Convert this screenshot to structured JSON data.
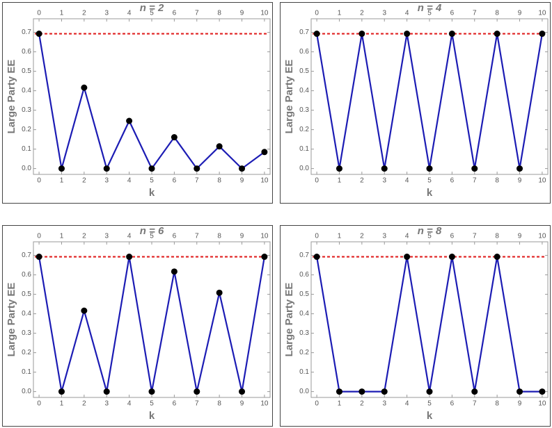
{
  "chart_data": [
    {
      "type": "line",
      "title": "n = 2",
      "xlabel": "k",
      "ylabel": "Large Party EE",
      "x": [
        0,
        1,
        2,
        3,
        4,
        5,
        6,
        7,
        8,
        9,
        10
      ],
      "values": [
        0.693,
        0,
        0.416,
        0,
        0.245,
        0,
        0.161,
        0,
        0.114,
        0,
        0.085
      ],
      "color": "#1c1cb4",
      "marker_color": "#000000",
      "hline": 0.693,
      "hline_color": "#e02020",
      "xlim": [
        -0.25,
        10.25
      ],
      "ylim": [
        -0.03,
        0.77
      ],
      "xticks": [
        0,
        1,
        2,
        3,
        4,
        5,
        6,
        7,
        8,
        9,
        10
      ],
      "yticks": [
        {
          "value": 0,
          "label": "0.0"
        },
        0.1,
        0.2,
        0.3,
        0.4,
        0.5,
        0.6,
        0.7
      ]
    },
    {
      "type": "line",
      "title": "n = 4",
      "xlabel": "k",
      "ylabel": "Large Party EE",
      "x": [
        0,
        1,
        2,
        3,
        4,
        5,
        6,
        7,
        8,
        9,
        10
      ],
      "values": [
        0.693,
        0,
        0.693,
        0,
        0.693,
        0,
        0.693,
        0,
        0.693,
        0,
        0.693
      ],
      "color": "#1c1cb4",
      "marker_color": "#000000",
      "hline": 0.693,
      "hline_color": "#e02020",
      "xlim": [
        -0.25,
        10.25
      ],
      "ylim": [
        -0.03,
        0.77
      ],
      "xticks": [
        0,
        1,
        2,
        3,
        4,
        5,
        6,
        7,
        8,
        9,
        10
      ],
      "yticks": [
        {
          "value": 0,
          "label": "0.0"
        },
        0.1,
        0.2,
        0.3,
        0.4,
        0.5,
        0.6,
        0.7
      ]
    },
    {
      "type": "line",
      "title": "n = 6",
      "xlabel": "k",
      "ylabel": "Large Party EE",
      "x": [
        0,
        1,
        2,
        3,
        4,
        5,
        6,
        7,
        8,
        9,
        10
      ],
      "values": [
        0.693,
        0,
        0.416,
        0,
        0.693,
        0,
        0.617,
        0,
        0.508,
        0,
        0.693
      ],
      "color": "#1c1cb4",
      "marker_color": "#000000",
      "hline": 0.693,
      "hline_color": "#e02020",
      "xlim": [
        -0.25,
        10.25
      ],
      "ylim": [
        -0.03,
        0.77
      ],
      "xticks": [
        0,
        1,
        2,
        3,
        4,
        5,
        6,
        7,
        8,
        9,
        10
      ],
      "yticks": [
        {
          "value": 0,
          "label": "0.0"
        },
        0.1,
        0.2,
        0.3,
        0.4,
        0.5,
        0.6,
        0.7
      ]
    },
    {
      "type": "line",
      "title": "n = 8",
      "xlabel": "k",
      "ylabel": "Large Party EE",
      "x": [
        0,
        1,
        2,
        3,
        4,
        5,
        6,
        7,
        8,
        9,
        10
      ],
      "values": [
        0.693,
        0,
        0,
        0,
        0.693,
        0,
        0.693,
        0,
        0.693,
        0,
        0
      ],
      "color": "#1c1cb4",
      "marker_color": "#000000",
      "hline": 0.693,
      "hline_color": "#e02020",
      "xlim": [
        -0.25,
        10.25
      ],
      "ylim": [
        -0.03,
        0.77
      ],
      "xticks": [
        0,
        1,
        2,
        3,
        4,
        5,
        6,
        7,
        8,
        9,
        10
      ],
      "yticks": [
        {
          "value": 0,
          "label": "0.0"
        },
        0.1,
        0.2,
        0.3,
        0.4,
        0.5,
        0.6,
        0.7
      ]
    }
  ]
}
